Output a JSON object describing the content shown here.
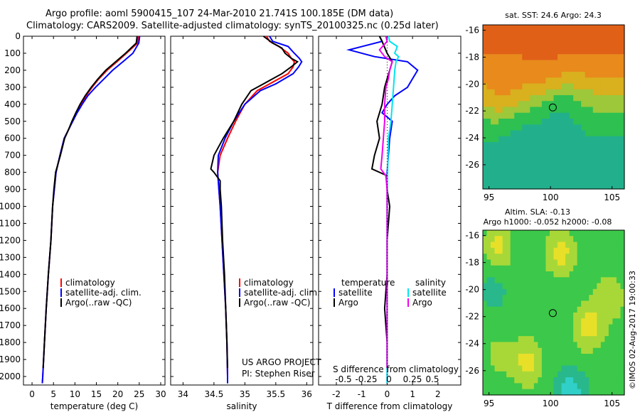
{
  "title": {
    "line1": "Argo profile: aoml 5900415_107 24-Mar-2010 21.741S 100.185E (DM data)",
    "line2": "Climatology: CARS2009. Satellite-adjusted climatology: synTS_20100325.nc (0.25d later)"
  },
  "colors": {
    "climatology": "#ff0000",
    "satellite": "#0000ff",
    "argo": "#000000",
    "sat_salinity": "#00e5ee",
    "argo_salinity": "#ee00ee"
  },
  "chart_data": [
    {
      "type": "line",
      "xlabel": "temperature (deg C)",
      "ylabel": "",
      "xlim": [
        -2,
        31
      ],
      "ylim": [
        2050,
        0
      ],
      "xticks": [
        0,
        5,
        10,
        15,
        20,
        25,
        30
      ],
      "yticks": [
        0,
        100,
        200,
        300,
        400,
        500,
        600,
        700,
        800,
        900,
        1000,
        1100,
        1200,
        1300,
        1400,
        1500,
        1600,
        1700,
        1800,
        1900,
        2000
      ],
      "legend": [
        "climatology",
        "satellite-adj. clim.",
        "Argo(..raw -QC)"
      ],
      "series": [
        {
          "name": "climatology",
          "points": [
            [
              24.8,
              0
            ],
            [
              24.6,
              40
            ],
            [
              22,
              100
            ],
            [
              19.8,
              150
            ],
            [
              17.5,
              200
            ],
            [
              15.6,
              250
            ],
            [
              14,
              300
            ],
            [
              12.6,
              350
            ],
            [
              11.4,
              400
            ],
            [
              10.3,
              450
            ],
            [
              9.4,
              500
            ],
            [
              8.5,
              550
            ],
            [
              7.5,
              600
            ],
            [
              6.5,
              700
            ],
            [
              5.6,
              800
            ],
            [
              5.2,
              900
            ],
            [
              4.8,
              1000
            ],
            [
              4.4,
              1200
            ],
            [
              3.8,
              1400
            ],
            [
              3.3,
              1600
            ],
            [
              2.9,
              1800
            ],
            [
              2.5,
              2000
            ],
            [
              2.4,
              2040
            ]
          ]
        },
        {
          "name": "satellite-adj. clim.",
          "points": [
            [
              25.1,
              0
            ],
            [
              24.9,
              40
            ],
            [
              23.5,
              100
            ],
            [
              21.2,
              150
            ],
            [
              18.8,
              200
            ],
            [
              16.8,
              250
            ],
            [
              14.8,
              300
            ],
            [
              13,
              350
            ],
            [
              11.7,
              400
            ],
            [
              10.5,
              450
            ],
            [
              9.5,
              500
            ],
            [
              8.5,
              550
            ],
            [
              7.5,
              600
            ],
            [
              6.5,
              700
            ],
            [
              5.6,
              800
            ],
            [
              5.2,
              900
            ],
            [
              4.8,
              1000
            ],
            [
              4.4,
              1200
            ],
            [
              3.8,
              1400
            ],
            [
              3.3,
              1600
            ],
            [
              2.9,
              1800
            ],
            [
              2.5,
              2000
            ],
            [
              2.4,
              2040
            ]
          ]
        },
        {
          "name": "Argo(..raw -QC)",
          "points": [
            [
              24.5,
              0
            ],
            [
              24.3,
              40
            ],
            [
              21.8,
              100
            ],
            [
              19.5,
              150
            ],
            [
              17.2,
              200
            ],
            [
              15.4,
              250
            ],
            [
              13.8,
              300
            ],
            [
              12.4,
              350
            ],
            [
              11.2,
              400
            ],
            [
              10.2,
              450
            ],
            [
              9.3,
              500
            ],
            [
              8.5,
              550
            ],
            [
              7.6,
              600
            ],
            [
              6.6,
              700
            ],
            [
              5.5,
              800
            ],
            [
              5.1,
              900
            ],
            [
              4.8,
              1000
            ],
            [
              4.4,
              1200
            ],
            [
              3.8,
              1400
            ],
            [
              3.3,
              1600
            ],
            [
              2.9,
              1800
            ],
            [
              2.6,
              1950
            ]
          ]
        }
      ]
    },
    {
      "type": "line",
      "xlabel": "salinity",
      "xlim": [
        33.8,
        36.1
      ],
      "ylim": [
        2050,
        0
      ],
      "xticks": [
        34,
        34.5,
        35,
        35.5,
        36
      ],
      "legend": [
        "climatology",
        "satellite-adj. clim.",
        "Argo(..raw -QC)"
      ],
      "annotation": [
        "US ARGO PROJECT",
        "PI: Stephen Riser"
      ],
      "series": [
        {
          "name": "climatology",
          "points": [
            [
              35.35,
              0
            ],
            [
              35.4,
              30
            ],
            [
              35.55,
              60
            ],
            [
              35.7,
              100
            ],
            [
              35.75,
              130
            ],
            [
              35.8,
              150
            ],
            [
              35.78,
              180
            ],
            [
              35.7,
              220
            ],
            [
              35.4,
              280
            ],
            [
              35.2,
              320
            ],
            [
              35,
              400
            ],
            [
              34.85,
              500
            ],
            [
              34.72,
              600
            ],
            [
              34.6,
              700
            ],
            [
              34.56,
              800
            ],
            [
              34.58,
              900
            ],
            [
              34.6,
              1000
            ],
            [
              34.63,
              1200
            ],
            [
              34.66,
              1400
            ],
            [
              34.69,
              1600
            ],
            [
              34.71,
              1800
            ],
            [
              34.72,
              2000
            ],
            [
              34.72,
              2040
            ]
          ]
        },
        {
          "name": "satellite-adj. clim.",
          "points": [
            [
              35.4,
              0
            ],
            [
              35.45,
              30
            ],
            [
              35.7,
              60
            ],
            [
              35.8,
              100
            ],
            [
              35.88,
              130
            ],
            [
              35.92,
              150
            ],
            [
              35.87,
              180
            ],
            [
              35.78,
              220
            ],
            [
              35.5,
              280
            ],
            [
              35.25,
              320
            ],
            [
              35,
              400
            ],
            [
              34.82,
              500
            ],
            [
              34.68,
              600
            ],
            [
              34.57,
              700
            ],
            [
              34.56,
              800
            ],
            [
              34.58,
              900
            ],
            [
              34.6,
              1000
            ],
            [
              34.63,
              1200
            ],
            [
              34.66,
              1400
            ],
            [
              34.69,
              1600
            ],
            [
              34.71,
              1800
            ],
            [
              34.72,
              2000
            ],
            [
              34.72,
              2040
            ]
          ]
        },
        {
          "name": "Argo(..raw -QC)",
          "points": [
            [
              35.3,
              0
            ],
            [
              35.45,
              40
            ],
            [
              35.6,
              70
            ],
            [
              35.65,
              100
            ],
            [
              35.75,
              130
            ],
            [
              35.85,
              150
            ],
            [
              35.75,
              180
            ],
            [
              35.6,
              220
            ],
            [
              35.3,
              280
            ],
            [
              35.1,
              320
            ],
            [
              34.95,
              400
            ],
            [
              34.82,
              500
            ],
            [
              34.65,
              600
            ],
            [
              34.5,
              700
            ],
            [
              34.45,
              780
            ],
            [
              34.5,
              800
            ],
            [
              34.6,
              850
            ],
            [
              34.6,
              900
            ],
            [
              34.62,
              1000
            ],
            [
              34.64,
              1200
            ],
            [
              34.67,
              1400
            ],
            [
              34.69,
              1600
            ],
            [
              34.71,
              1800
            ],
            [
              34.72,
              1950
            ]
          ]
        }
      ]
    },
    {
      "type": "line",
      "xlabel": "T difference from climatology",
      "xlabel_top": "S difference from climatology",
      "xlim": [
        -2.7,
        2.9
      ],
      "ylim": [
        2050,
        0
      ],
      "xticks": [
        -2,
        -1,
        0,
        1,
        2
      ],
      "xticks_top": [
        "-0.5",
        "-0.25",
        "0",
        "0.25",
        "0.5"
      ],
      "legend": [
        "temperature",
        "satellite",
        "Argo",
        "salinity",
        "satellite",
        "Argo"
      ],
      "series": [
        {
          "name": "temperature satellite",
          "points": [
            [
              -0.3,
              0
            ],
            [
              -0.2,
              30
            ],
            [
              -1.5,
              80
            ],
            [
              -0.5,
              120
            ],
            [
              0.8,
              150
            ],
            [
              1.2,
              200
            ],
            [
              1,
              250
            ],
            [
              0.8,
              300
            ],
            [
              0.3,
              350
            ],
            [
              0,
              400
            ],
            [
              -0.2,
              450
            ],
            [
              0.2,
              500
            ],
            [
              0.1,
              600
            ],
            [
              0,
              800
            ],
            [
              0,
              2040
            ]
          ]
        },
        {
          "name": "temperature Argo",
          "points": [
            [
              -0.3,
              0
            ],
            [
              -0.2,
              30
            ],
            [
              0,
              100
            ],
            [
              0.2,
              150
            ],
            [
              0.1,
              200
            ],
            [
              0,
              250
            ],
            [
              -0.1,
              300
            ],
            [
              -0.2,
              400
            ],
            [
              -0.4,
              500
            ],
            [
              -0.3,
              600
            ],
            [
              -0.5,
              700
            ],
            [
              -0.6,
              780
            ],
            [
              0,
              820
            ],
            [
              0,
              900
            ],
            [
              0.1,
              1000
            ],
            [
              0,
              1200
            ],
            [
              0,
              1400
            ],
            [
              -0.1,
              1600
            ],
            [
              0,
              1800
            ],
            [
              0,
              1950
            ]
          ]
        },
        {
          "name": "salinity satellite",
          "points": [
            [
              0.05,
              0
            ],
            [
              0.1,
              30
            ],
            [
              0.4,
              60
            ],
            [
              0.3,
              100
            ],
            [
              0.45,
              120
            ],
            [
              0.35,
              150
            ],
            [
              0.3,
              200
            ],
            [
              0.25,
              300
            ],
            [
              0.2,
              400
            ],
            [
              0.15,
              500
            ],
            [
              0.05,
              600
            ],
            [
              0.02,
              800
            ],
            [
              0,
              1000
            ],
            [
              0,
              2040
            ]
          ]
        },
        {
          "name": "salinity Argo",
          "points": [
            [
              -0.05,
              0
            ],
            [
              0,
              30
            ],
            [
              -0.3,
              80
            ],
            [
              -0.1,
              120
            ],
            [
              0.2,
              150
            ],
            [
              0.1,
              200
            ],
            [
              0.05,
              250
            ],
            [
              -0.05,
              300
            ],
            [
              -0.1,
              400
            ],
            [
              -0.1,
              500
            ],
            [
              -0.15,
              600
            ],
            [
              -0.2,
              700
            ],
            [
              -0.25,
              780
            ],
            [
              -0.05,
              820
            ],
            [
              0,
              900
            ],
            [
              0,
              1000
            ],
            [
              0,
              1200
            ],
            [
              0,
              1400
            ],
            [
              0,
              1600
            ],
            [
              0,
              1800
            ],
            [
              0,
              1950
            ]
          ]
        }
      ]
    },
    {
      "type": "heatmap",
      "title": "sat. SST: 24.6 Argo: 24.3",
      "xlim": [
        94.5,
        106
      ],
      "ylim": [
        -27.8,
        -15.6
      ],
      "xticks": [
        95,
        100,
        105
      ],
      "yticks": [
        -16,
        -18,
        -20,
        -22,
        -24,
        -26
      ],
      "marker": {
        "x": 100.185,
        "y": -21.741
      }
    },
    {
      "type": "heatmap",
      "title_line1": "Altim. SLA: -0.13",
      "title_line2": "Argo h1000: -0.052 h2000: -0.08",
      "xlim": [
        94.5,
        106
      ],
      "ylim": [
        -27.8,
        -15.6
      ],
      "xticks": [
        95,
        100,
        105
      ],
      "yticks": [
        -16,
        -18,
        -20,
        -22,
        -24,
        -26
      ],
      "marker": {
        "x": 100.185,
        "y": -21.741
      }
    }
  ],
  "footer": "©IMOS 02-Aug-2017 19:00:33"
}
